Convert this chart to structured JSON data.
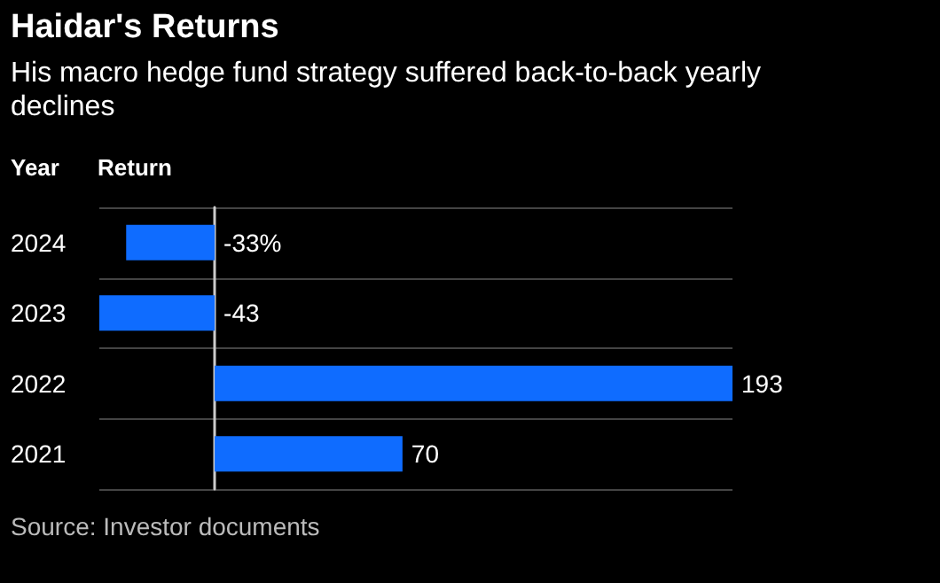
{
  "chart_data": {
    "type": "bar",
    "orientation": "horizontal",
    "title": "Haidar's Returns",
    "subtitle": "His macro hedge fund strategy suffered back-to-back yearly declines",
    "ylabel": "Year",
    "xlabel": "Return",
    "categories": [
      "2024",
      "2023",
      "2022",
      "2021"
    ],
    "values": [
      -33,
      -43,
      193,
      70
    ],
    "value_labels": [
      "-33%",
      "-43",
      "193",
      "70"
    ],
    "color": "#0f6cff",
    "grid": "y",
    "annotations": [
      "Source: Investor documents"
    ]
  }
}
